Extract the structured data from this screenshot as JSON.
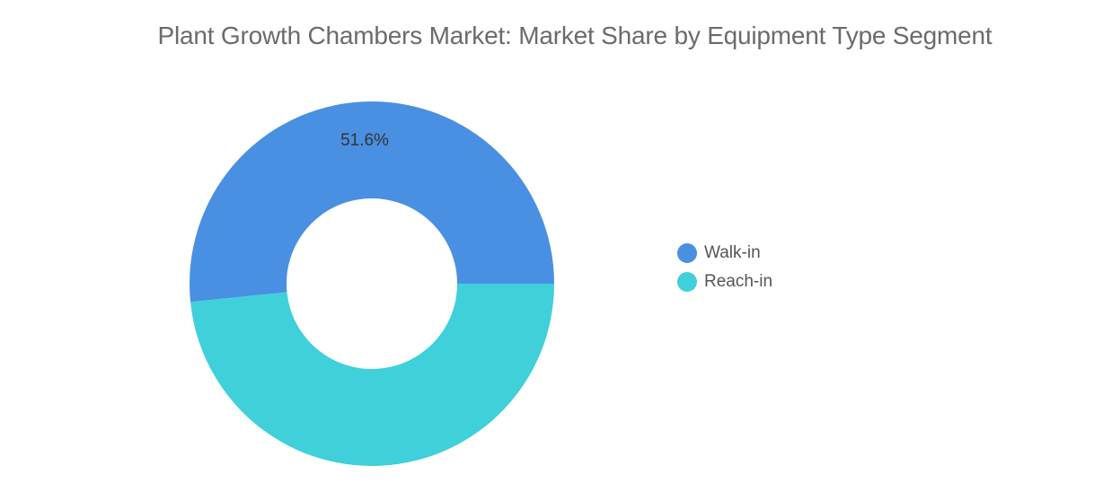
{
  "chart_data": {
    "type": "pie",
    "title": "Plant Growth Chambers Market: Market Share by Equipment Type Segment",
    "categories": [
      "Walk-in",
      "Reach-in"
    ],
    "values": [
      51.6,
      48.4
    ],
    "data_labels": [
      "51.6%",
      ""
    ],
    "colors": [
      "#4a90e2",
      "#40d0da"
    ],
    "legend_placement": "right"
  }
}
